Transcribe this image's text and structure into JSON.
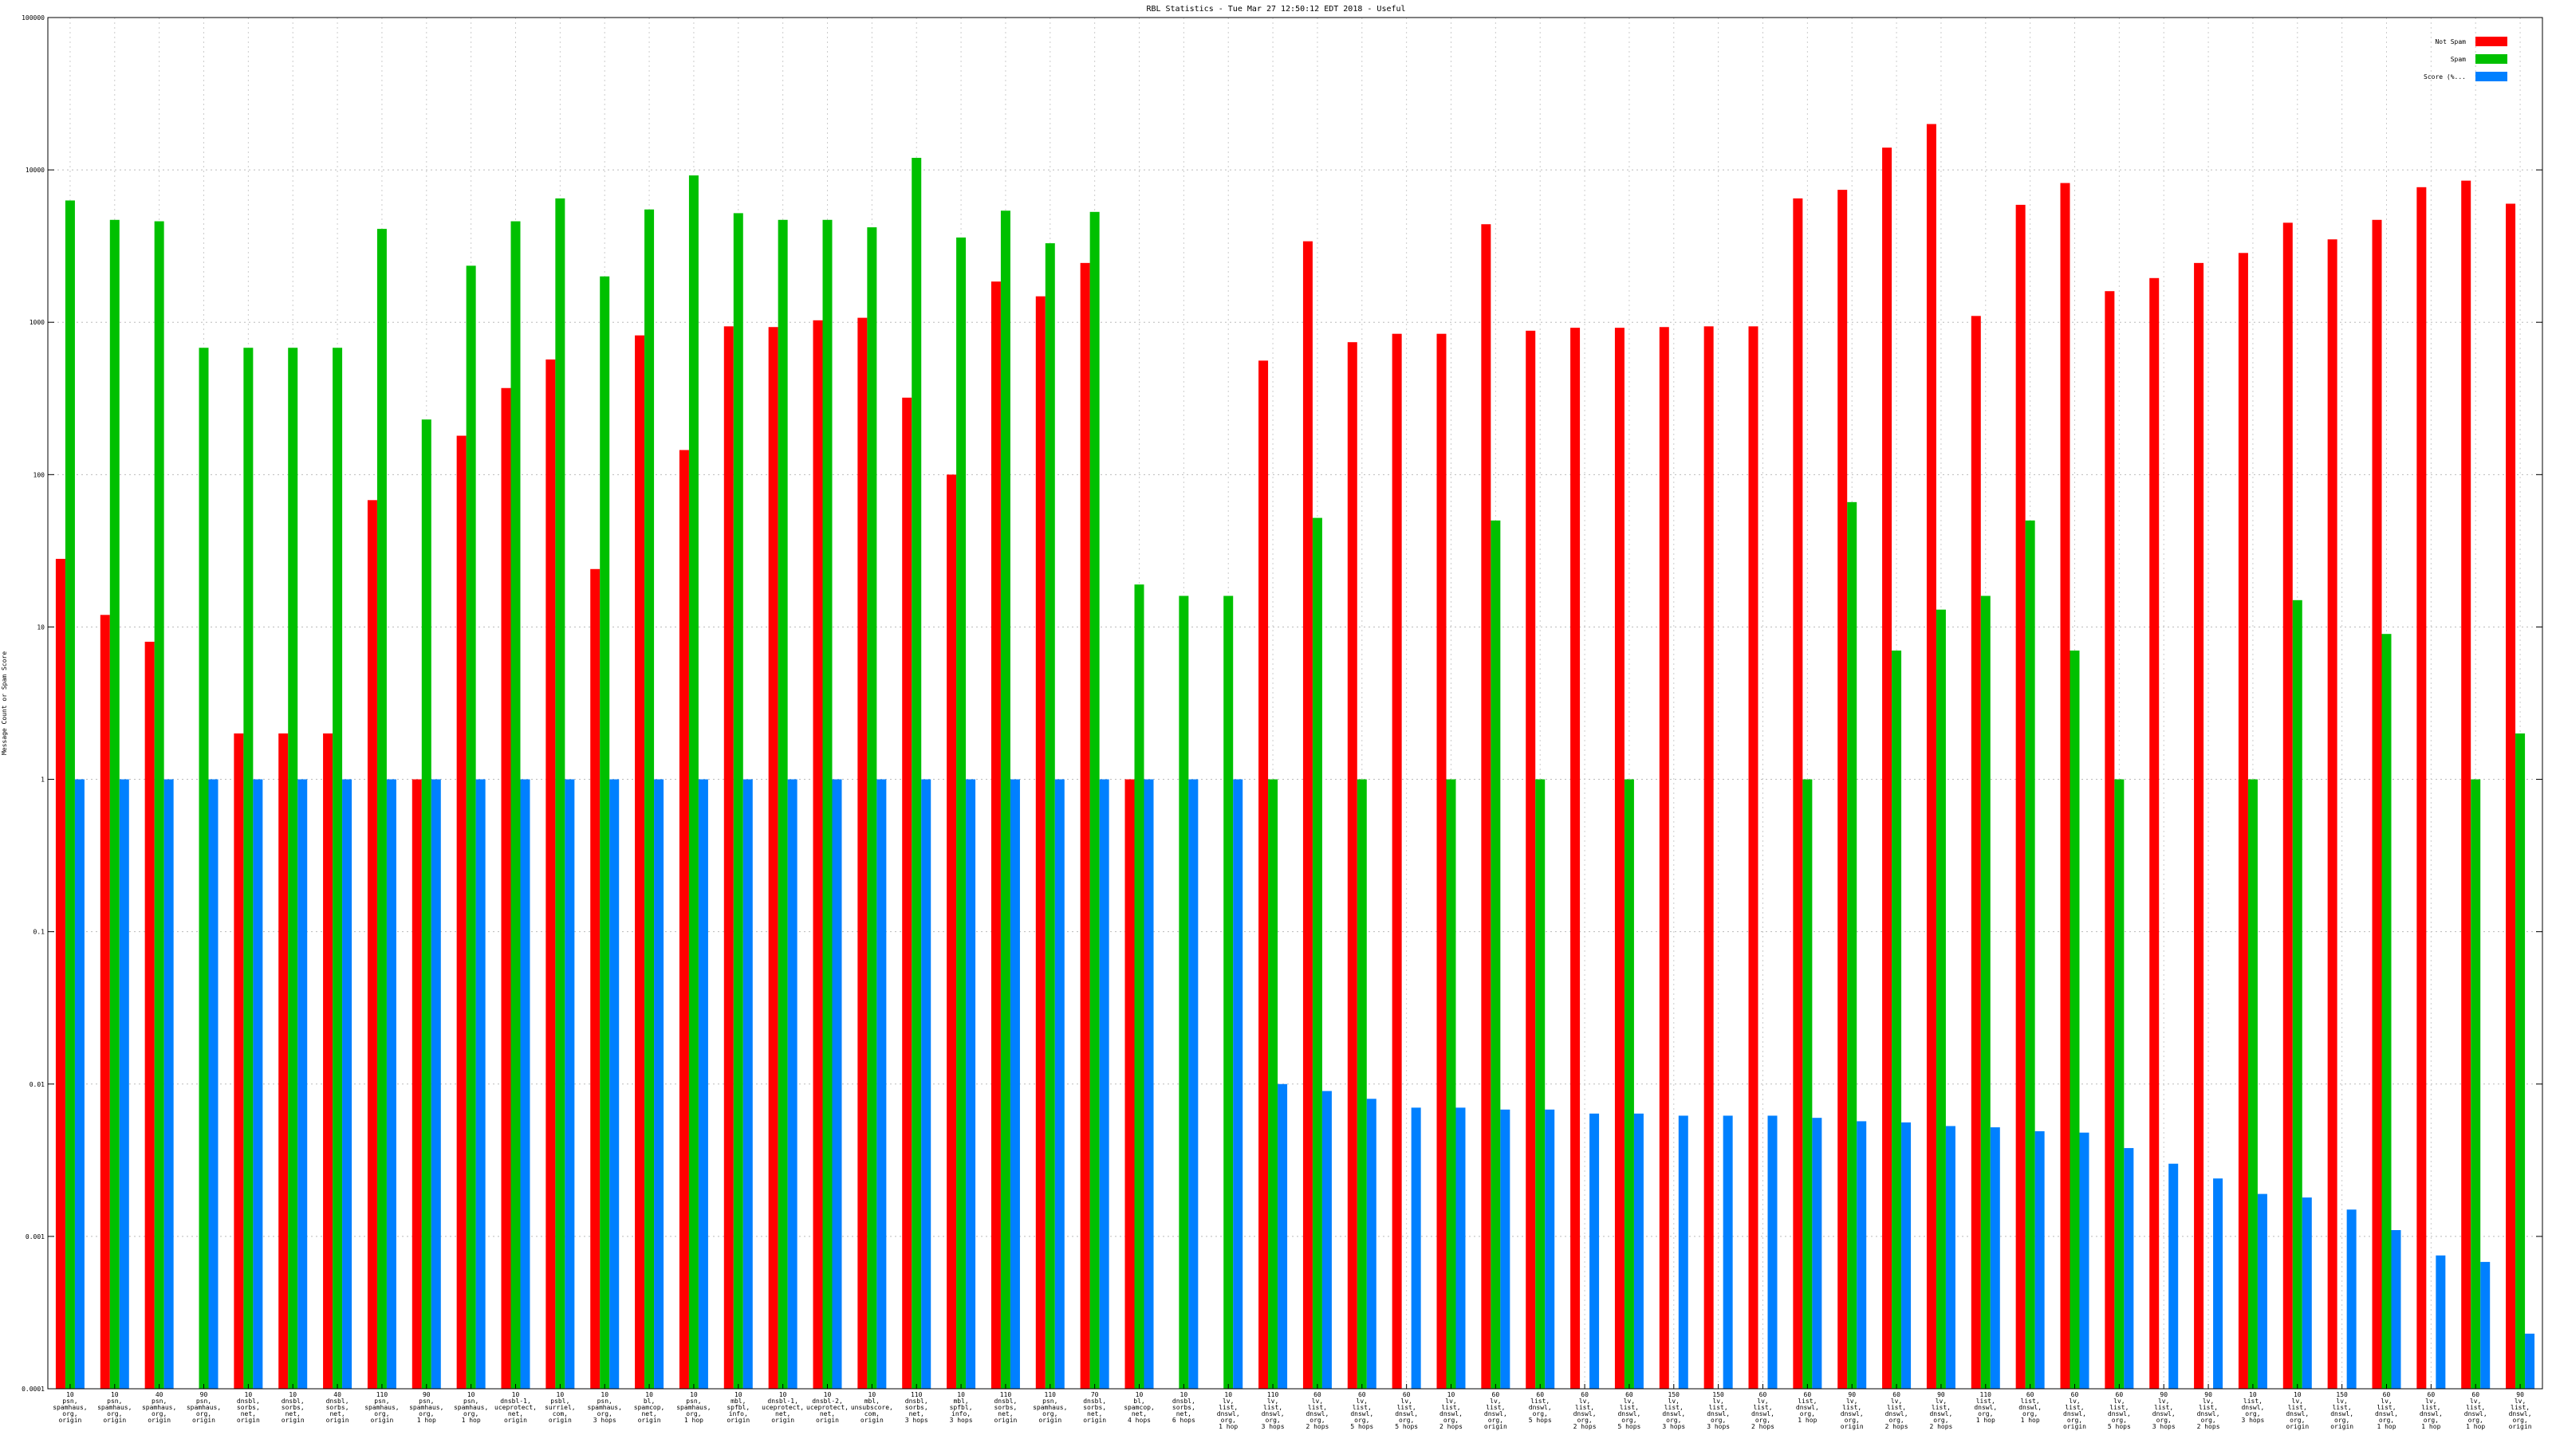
{
  "chart_data": {
    "type": "bar",
    "title": "RBL Statistics - Tue Mar 27 12:50:12 EDT 2018 - Useful",
    "ylabel": "Message Count or Spam Score",
    "xlabel": "",
    "y_scale": "log",
    "ylim": [
      0.0001,
      100000
    ],
    "y_tick_labels": [
      "100000",
      "10000",
      "1000",
      "100",
      "10",
      "1",
      "0.1",
      "0.01",
      "0.001",
      "0.0001"
    ],
    "grid": true,
    "legend_position": "top-right",
    "colors": [
      "#ff0000",
      "#00c000",
      "#0080ff"
    ],
    "series": [
      {
        "name": "Not Spam",
        "values": [
          28,
          12,
          8,
          0,
          2,
          2,
          2,
          68,
          1,
          180,
          370,
          570,
          24,
          820,
          145,
          940,
          930,
          1030,
          1070,
          320,
          100,
          1850,
          1480,
          2450,
          1,
          0,
          0,
          560,
          3400,
          740,
          840,
          840,
          4400,
          880,
          920,
          920,
          930,
          940,
          940,
          6500,
          7400,
          14000,
          20000,
          1100,
          5900,
          8200,
          1600,
          1950,
          2450,
          2850,
          4500,
          3500,
          4700,
          7700,
          8500,
          6000
        ]
      },
      {
        "name": "Spam",
        "values": [
          6300,
          4700,
          4600,
          680,
          680,
          680,
          680,
          4100,
          230,
          2350,
          4600,
          6500,
          2000,
          5500,
          9200,
          5200,
          4700,
          4700,
          4200,
          12000,
          3600,
          5400,
          3300,
          5300,
          19,
          16,
          16,
          1,
          52,
          1,
          0,
          1,
          50,
          1,
          0,
          1,
          0,
          0,
          0,
          1,
          66,
          7,
          13,
          16,
          50,
          7,
          1,
          0,
          0,
          1,
          15,
          0,
          9,
          0,
          1,
          2
        ]
      },
      {
        "name": "Score (%...",
        "values": [
          1,
          1,
          1,
          1,
          1,
          1,
          1,
          1,
          1,
          1,
          1,
          1,
          1,
          1,
          1,
          1,
          1,
          1,
          1,
          1,
          1,
          1,
          1,
          1,
          1,
          1,
          1,
          0.01,
          0.009,
          0.008,
          0.007,
          0.007,
          0.0068,
          0.0068,
          0.0064,
          0.0064,
          0.0062,
          0.0062,
          0.0062,
          0.006,
          0.0057,
          0.0056,
          0.0053,
          0.0052,
          0.0049,
          0.0048,
          0.0038,
          0.003,
          0.0024,
          0.0019,
          0.0018,
          0.0015,
          0.0011,
          0.00075,
          0.00068,
          0.00023
        ]
      }
    ],
    "categories": [
      "10\npsn,\nspamhaus,\norg,\norigin",
      "10\npsn,\nspamhaus,\norg,\norigin",
      "40\npsn,\nspamhaus,\norg,\norigin",
      "90\npsn,\nspamhaus,\norg,\norigin",
      "10\ndnsbl,\nsorbs,\nnet,\norigin",
      "10\ndnsbl,\nsorbs,\nnet,\norigin",
      "40\ndnsbl,\nsorbs,\nnet,\norigin",
      "110\npsn,\nspamhaus,\norg,\norigin",
      "90\npsn,\nspamhaus,\norg,\n1 hop",
      "10\npsn,\nspamhaus,\norg,\n1 hop",
      "10\ndnsbl-1,\nuceprotect,\nnet,\norigin",
      "10\npsbl,\nsurriel,\ncom,\norigin",
      "10\npsn,\nspamhaus,\norg,\n3 hops",
      "10\nbl,\nspamcop,\nnet,\norigin",
      "10\npsn,\nspamhaus,\norg,\n1 hop",
      "10\nmbl,\nspfbl,\ninfo,\norigin",
      "10\ndnsbl-1,\nuceprotect,\nnet,\norigin",
      "10\ndnsbl-2,\nuceprotect,\nnet,\norigin",
      "10\nmbl,\nunsubscore,\ncom,\norigin",
      "110\ndnsbl,\nsorbs,\nnet,\n3 hops",
      "10\nmbl,\nspfbl,\ninfo,\n3 hops",
      "110\ndnsbl,\nsorbs,\nnet,\norigin",
      "110\npsn,\nspamhaus,\norg,\norigin",
      "70\ndnsbl,\nsorbs,\nnet,\norigin",
      "10\nbl,\nspamcop,\nnet,\n4 hops",
      "10\ndnsbl,\nsorbs,\nnet,\n6 hops",
      "10\nlv,\nlist,\ndnswl,\norg,\n1 hop",
      "110\nlv,\nlist,\ndnswl,\norg,\n3 hops",
      "60\nlv,\nlist,\ndnswl,\norg,\n2 hops",
      "60\nlv,\nlist,\ndnswl,\norg,\n5 hops",
      "60\nlv,\nlist,\ndnswl,\norg,\n5 hops",
      "10\nlv,\nlist,\ndnswl,\norg,\n2 hops",
      "60\nlv,\nlist,\ndnswl,\norg,\norigin",
      "60\nlist,\ndnswl,\norg,\n5 hops",
      "60\nlv,\nlist,\ndnswl,\norg,\n2 hops",
      "60\nlv,\nlist,\ndnswl,\norg,\n5 hops",
      "150\nlv,\nlist,\ndnswl,\norg,\n3 hops",
      "150\nlv,\nlist,\ndnswl,\norg,\n3 hops",
      "60\nlv,\nlist,\ndnswl,\norg,\n2 hops",
      "60\nlist,\ndnswl,\norg,\n1 hop",
      "90\nlv,\nlist,\ndnswl,\norg,\norigin",
      "60\nlv,\nlist,\ndnswl,\norg,\n2 hops",
      "90\nlv,\nlist,\ndnswl,\norg,\n2 hops",
      "110\nlist,\ndnswl,\norg,\n1 hop",
      "60\nlist,\ndnswl,\norg,\n1 hop",
      "60\nlv,\nlist,\ndnswl,\norg,\norigin",
      "60\nlv,\nlist,\ndnswl,\norg,\n5 hops",
      "90\nlv,\nlist,\ndnswl,\norg,\n3 hops",
      "90\nlv,\nlist,\ndnswl,\norg,\n2 hops",
      "10\nlist,\ndnswl,\norg,\n3 hops",
      "10\nlv,\nlist,\ndnswl,\norg,\norigin",
      "150\nlv,\nlist,\ndnswl,\norg,\norigin",
      "60\nlv,\nlist,\ndnswl,\norg,\n1 hop",
      "60\nlv,\nlist,\ndnswl,\norg,\n1 hop",
      "60\nlv,\nlist,\ndnswl,\norg,\n1 hop",
      "90\nlv,\nlist,\ndnswl,\norg,\norigin"
    ]
  }
}
